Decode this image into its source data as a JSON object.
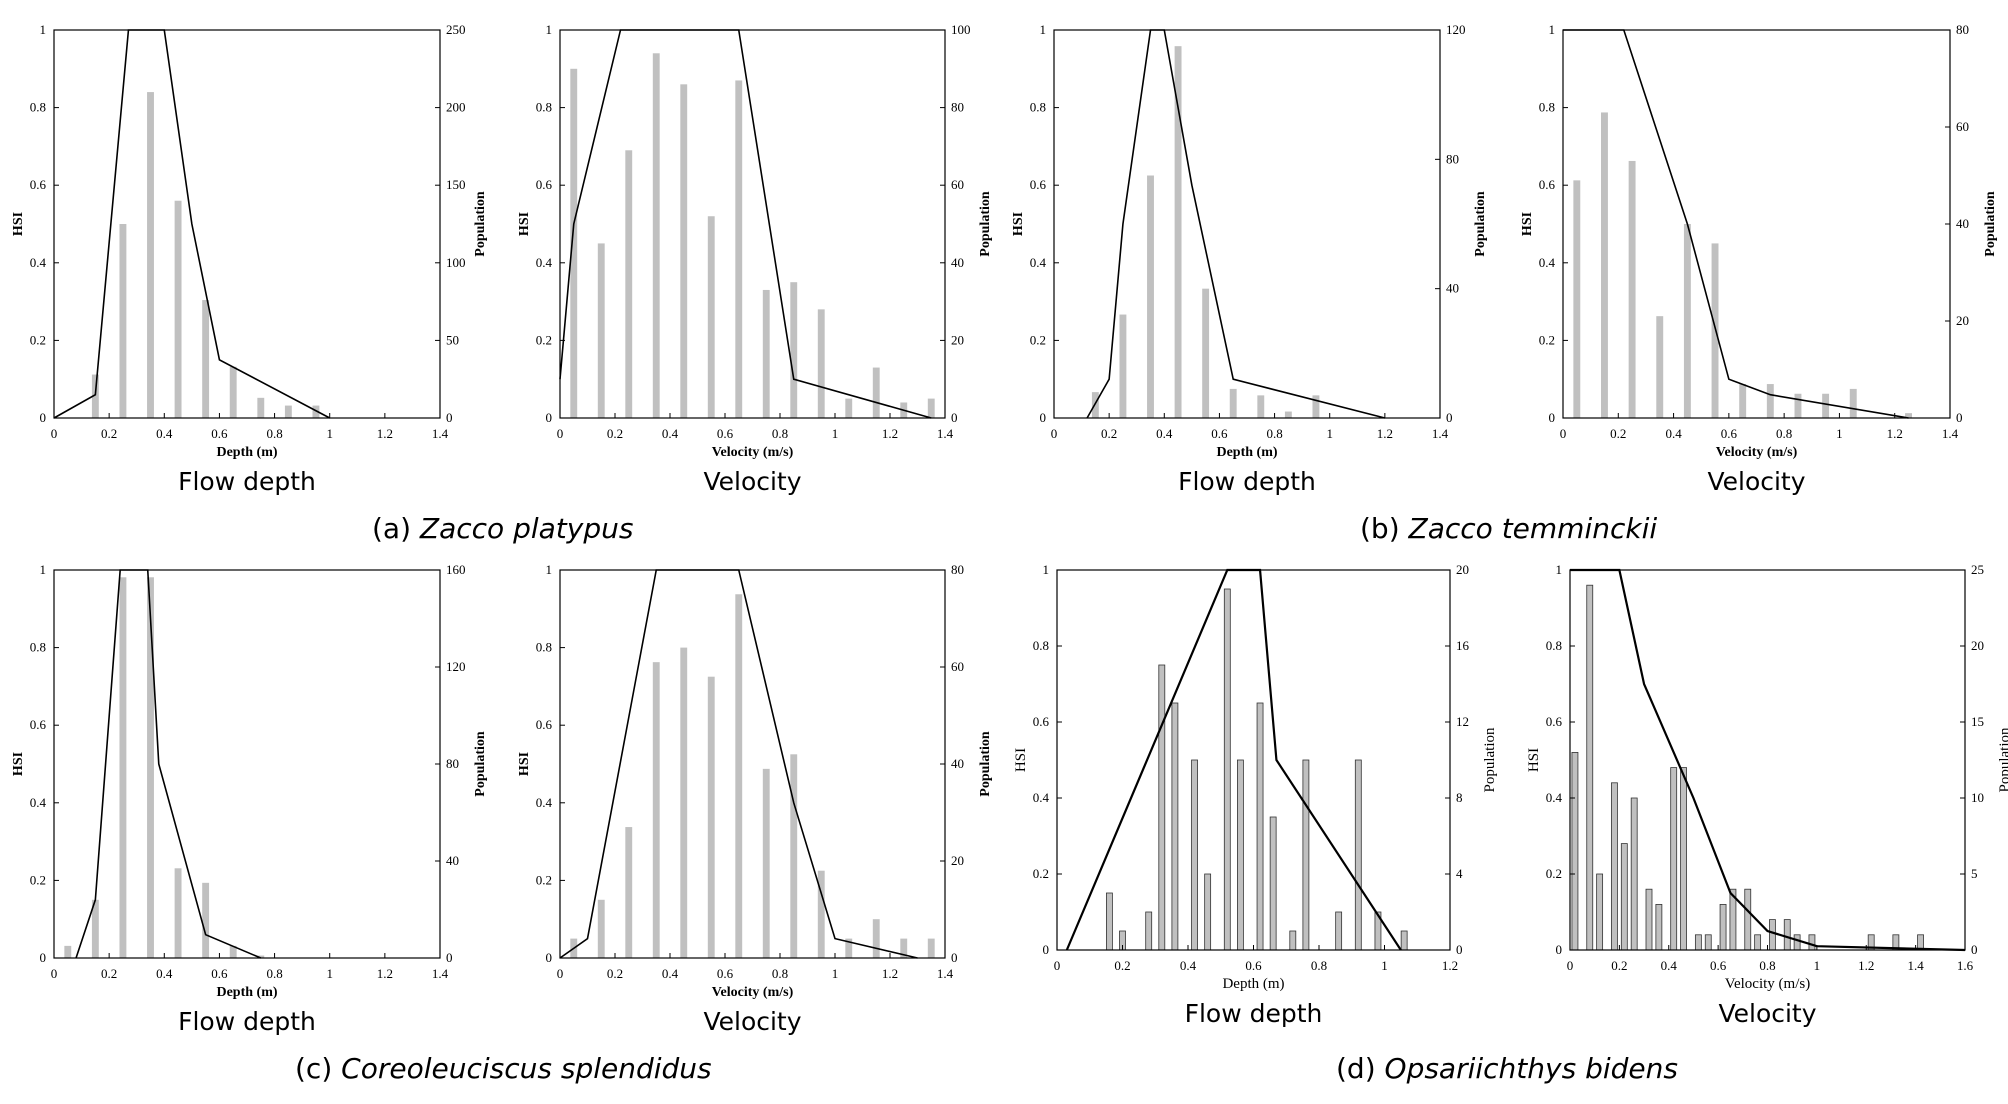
{
  "chart_data": [
    {
      "type": "bar+line",
      "panel": "a",
      "subtitle": "Flow depth",
      "xlabel": "Depth (m)",
      "ylabel": "HSI",
      "y2label": "Population",
      "xlim": [
        0,
        1.4
      ],
      "xticks": [
        "0",
        "0.2",
        "0.4",
        "0.6",
        "0.8",
        "1",
        "1.2",
        "1.4"
      ],
      "ylim": [
        0,
        1
      ],
      "yticks": [
        "0",
        "0.2",
        "0.4",
        "0.6",
        "0.8",
        "1"
      ],
      "y2lim": [
        0,
        250
      ],
      "y2ticks": [
        "0",
        "50",
        "100",
        "150",
        "200",
        "250"
      ],
      "bars": {
        "x": [
          0.15,
          0.25,
          0.35,
          0.45,
          0.55,
          0.65,
          0.75,
          0.85,
          0.95
        ],
        "values": [
          28,
          125,
          210,
          140,
          76,
          33,
          13,
          8,
          8
        ]
      },
      "line": [
        [
          0,
          0
        ],
        [
          0.15,
          0.06
        ],
        [
          0.27,
          1
        ],
        [
          0.4,
          1
        ],
        [
          0.5,
          0.5
        ],
        [
          0.6,
          0.15
        ],
        [
          1,
          0
        ]
      ]
    },
    {
      "type": "bar+line",
      "panel": "a",
      "subtitle": "Velocity",
      "xlabel": "Velocity (m/s)",
      "ylabel": "HSI",
      "y2label": "Population",
      "xlim": [
        0,
        1.4
      ],
      "xticks": [
        "0",
        "0.2",
        "0.4",
        "0.6",
        "0.8",
        "1",
        "1.2",
        "1.4"
      ],
      "ylim": [
        0,
        1
      ],
      "yticks": [
        "0",
        "0.2",
        "0.4",
        "0.6",
        "0.8",
        "1"
      ],
      "y2lim": [
        0,
        100
      ],
      "y2ticks": [
        "0",
        "20",
        "40",
        "60",
        "80",
        "100"
      ],
      "bars": {
        "x": [
          0.05,
          0.15,
          0.25,
          0.35,
          0.45,
          0.55,
          0.65,
          0.75,
          0.85,
          0.95,
          1.05,
          1.15,
          1.25,
          1.35
        ],
        "values": [
          90,
          45,
          69,
          94,
          86,
          52,
          87,
          33,
          35,
          28,
          5,
          13,
          4,
          5
        ]
      },
      "line": [
        [
          0,
          0.1
        ],
        [
          0.05,
          0.5
        ],
        [
          0.22,
          1
        ],
        [
          0.65,
          1
        ],
        [
          0.85,
          0.1
        ],
        [
          1.35,
          0
        ]
      ]
    },
    {
      "type": "bar+line",
      "panel": "b",
      "subtitle": "Flow depth",
      "xlabel": "Depth (m)",
      "ylabel": "HSI",
      "y2label": "Population",
      "xlim": [
        0,
        1.4
      ],
      "xticks": [
        "0",
        "0.2",
        "0.4",
        "0.6",
        "0.8",
        "1",
        "1.2",
        "1.4"
      ],
      "ylim": [
        0,
        1
      ],
      "yticks": [
        "0",
        "0.2",
        "0.4",
        "0.6",
        "0.8",
        "1"
      ],
      "y2lim": [
        0,
        120
      ],
      "y2ticks": [
        "0",
        "40",
        "80",
        "120"
      ],
      "bars": {
        "x": [
          0.15,
          0.25,
          0.35,
          0.45,
          0.55,
          0.65,
          0.75,
          0.85,
          0.95
        ],
        "values": [
          8,
          32,
          75,
          115,
          40,
          9,
          7,
          2,
          7
        ]
      },
      "line": [
        [
          0.12,
          0
        ],
        [
          0.2,
          0.1
        ],
        [
          0.25,
          0.5
        ],
        [
          0.35,
          1
        ],
        [
          0.4,
          1
        ],
        [
          0.5,
          0.6
        ],
        [
          0.65,
          0.1
        ],
        [
          1.2,
          0
        ]
      ]
    },
    {
      "type": "bar+line",
      "panel": "b",
      "subtitle": "Velocity",
      "xlabel": "Velocity (m/s)",
      "ylabel": "HSI",
      "y2label": "Population",
      "xlim": [
        0,
        1.4
      ],
      "xticks": [
        "0",
        "0.2",
        "0.4",
        "0.6",
        "0.8",
        "1",
        "1.2",
        "1.4"
      ],
      "ylim": [
        0,
        1
      ],
      "yticks": [
        "0",
        "0.2",
        "0.4",
        "0.6",
        "0.8",
        "1"
      ],
      "y2lim": [
        0,
        80
      ],
      "y2ticks": [
        "0",
        "20",
        "40",
        "60",
        "80"
      ],
      "bars": {
        "x": [
          0.05,
          0.15,
          0.25,
          0.35,
          0.45,
          0.55,
          0.65,
          0.75,
          0.85,
          0.95,
          1.05,
          1.15,
          1.25
        ],
        "values": [
          49,
          63,
          53,
          21,
          40,
          36,
          7,
          7,
          5,
          5,
          6,
          0,
          1
        ]
      },
      "line": [
        [
          0,
          1
        ],
        [
          0.22,
          1
        ],
        [
          0.45,
          0.5
        ],
        [
          0.6,
          0.1
        ],
        [
          0.75,
          0.06
        ],
        [
          1.25,
          0
        ]
      ]
    },
    {
      "type": "bar+line",
      "panel": "c",
      "subtitle": "Flow depth",
      "xlabel": "Depth (m)",
      "ylabel": "HSI",
      "y2label": "Population",
      "xlim": [
        0,
        1.4
      ],
      "xticks": [
        "0",
        "0.2",
        "0.4",
        "0.6",
        "0.8",
        "1",
        "1.2",
        "1.4"
      ],
      "ylim": [
        0,
        1
      ],
      "yticks": [
        "0",
        "0.2",
        "0.4",
        "0.6",
        "0.8",
        "1"
      ],
      "y2lim": [
        0,
        160
      ],
      "y2ticks": [
        "0",
        "40",
        "80",
        "120",
        "160"
      ],
      "bars": {
        "x": [
          0.05,
          0.15,
          0.25,
          0.35,
          0.45,
          0.55,
          0.65,
          0.75
        ],
        "values": [
          5,
          24,
          157,
          157,
          37,
          31,
          5,
          1
        ]
      },
      "line": [
        [
          0.08,
          0
        ],
        [
          0.15,
          0.15
        ],
        [
          0.24,
          1
        ],
        [
          0.34,
          1
        ],
        [
          0.38,
          0.5
        ],
        [
          0.55,
          0.06
        ],
        [
          0.75,
          0
        ]
      ]
    },
    {
      "type": "bar+line",
      "panel": "c",
      "subtitle": "Velocity",
      "xlabel": "Velocity (m/s)",
      "ylabel": "HSI",
      "y2label": "Population",
      "xlim": [
        0,
        1.4
      ],
      "xticks": [
        "0",
        "0.2",
        "0.4",
        "0.6",
        "0.8",
        "1",
        "1.2",
        "1.4"
      ],
      "ylim": [
        0,
        1
      ],
      "yticks": [
        "0",
        "0.2",
        "0.4",
        "0.6",
        "0.8",
        "1"
      ],
      "y2lim": [
        0,
        80
      ],
      "y2ticks": [
        "0",
        "20",
        "40",
        "60",
        "80"
      ],
      "bars": {
        "x": [
          0.05,
          0.15,
          0.25,
          0.35,
          0.45,
          0.55,
          0.65,
          0.75,
          0.85,
          0.95,
          1.05,
          1.15,
          1.25,
          1.35
        ],
        "values": [
          4,
          12,
          27,
          61,
          64,
          58,
          75,
          39,
          42,
          18,
          4,
          8,
          4,
          4
        ]
      },
      "line": [
        [
          0,
          0
        ],
        [
          0.1,
          0.05
        ],
        [
          0.35,
          1
        ],
        [
          0.65,
          1
        ],
        [
          0.85,
          0.4
        ],
        [
          1,
          0.05
        ],
        [
          1.3,
          0
        ]
      ]
    },
    {
      "type": "bar+line",
      "panel": "d",
      "subtitle": "Flow depth",
      "xlabel": "Depth (m)",
      "ylabel": "HSI",
      "y2label": "Population",
      "xlim": [
        0,
        1.2
      ],
      "xticks": [
        "0",
        "0.2",
        "0.4",
        "0.6",
        "0.8",
        "1",
        "1.2"
      ],
      "ylim": [
        0,
        1
      ],
      "yticks": [
        "0",
        "0.2",
        "0.4",
        "0.6",
        "0.8",
        "1"
      ],
      "y2lim": [
        0,
        20
      ],
      "y2ticks": [
        "0",
        "4",
        "8",
        "12",
        "16",
        "20"
      ],
      "bars": {
        "x": [
          0.16,
          0.2,
          0.28,
          0.32,
          0.36,
          0.42,
          0.46,
          0.52,
          0.56,
          0.62,
          0.66,
          0.72,
          0.76,
          0.86,
          0.92,
          0.98,
          1.06
        ],
        "values": [
          3,
          1,
          2,
          15,
          13,
          10,
          4,
          19,
          10,
          13,
          7,
          1,
          10,
          2,
          10,
          2,
          1
        ]
      },
      "line": [
        [
          0.03,
          0
        ],
        [
          0.52,
          1
        ],
        [
          0.62,
          1
        ],
        [
          0.67,
          0.5
        ],
        [
          1.05,
          0
        ]
      ]
    },
    {
      "type": "bar+line",
      "panel": "d",
      "subtitle": "Velocity",
      "xlabel": "Velocity (m/s)",
      "ylabel": "HSI",
      "y2label": "Population",
      "xlim": [
        0,
        1.6
      ],
      "xticks": [
        "0",
        "0.2",
        "0.4",
        "0.6",
        "0.8",
        "1",
        "1.2",
        "1.4",
        "1.6"
      ],
      "ylim": [
        0,
        1
      ],
      "yticks": [
        "0",
        "0.2",
        "0.4",
        "0.6",
        "0.8",
        "1"
      ],
      "y2lim": [
        0,
        25
      ],
      "y2ticks": [
        "0",
        "5",
        "10",
        "15",
        "20",
        "25"
      ],
      "bars": {
        "x": [
          0.02,
          0.08,
          0.12,
          0.18,
          0.22,
          0.26,
          0.32,
          0.36,
          0.42,
          0.46,
          0.52,
          0.56,
          0.62,
          0.66,
          0.72,
          0.76,
          0.82,
          0.88,
          0.92,
          0.98,
          1.06,
          1.12,
          1.22,
          1.32,
          1.42
        ],
        "values": [
          13,
          24,
          5,
          11,
          7,
          10,
          4,
          3,
          12,
          12,
          1,
          1,
          3,
          4,
          4,
          1,
          2,
          2,
          1,
          1,
          0,
          0,
          1,
          1,
          1
        ]
      },
      "line": [
        [
          0,
          1
        ],
        [
          0.2,
          1
        ],
        [
          0.3,
          0.7
        ],
        [
          0.5,
          0.4
        ],
        [
          0.65,
          0.15
        ],
        [
          0.8,
          0.05
        ],
        [
          1,
          0.01
        ],
        [
          1.6,
          0
        ]
      ]
    }
  ],
  "panel_captions": [
    {
      "letter": "(a)",
      "species": "Zacco platypus"
    },
    {
      "letter": "(b)",
      "species": "Zacco temminckii"
    },
    {
      "letter": "(c)",
      "species": "Coreoleuciscus splendidus"
    },
    {
      "letter": "(d)",
      "species": "Opsariichthys bidens"
    }
  ]
}
